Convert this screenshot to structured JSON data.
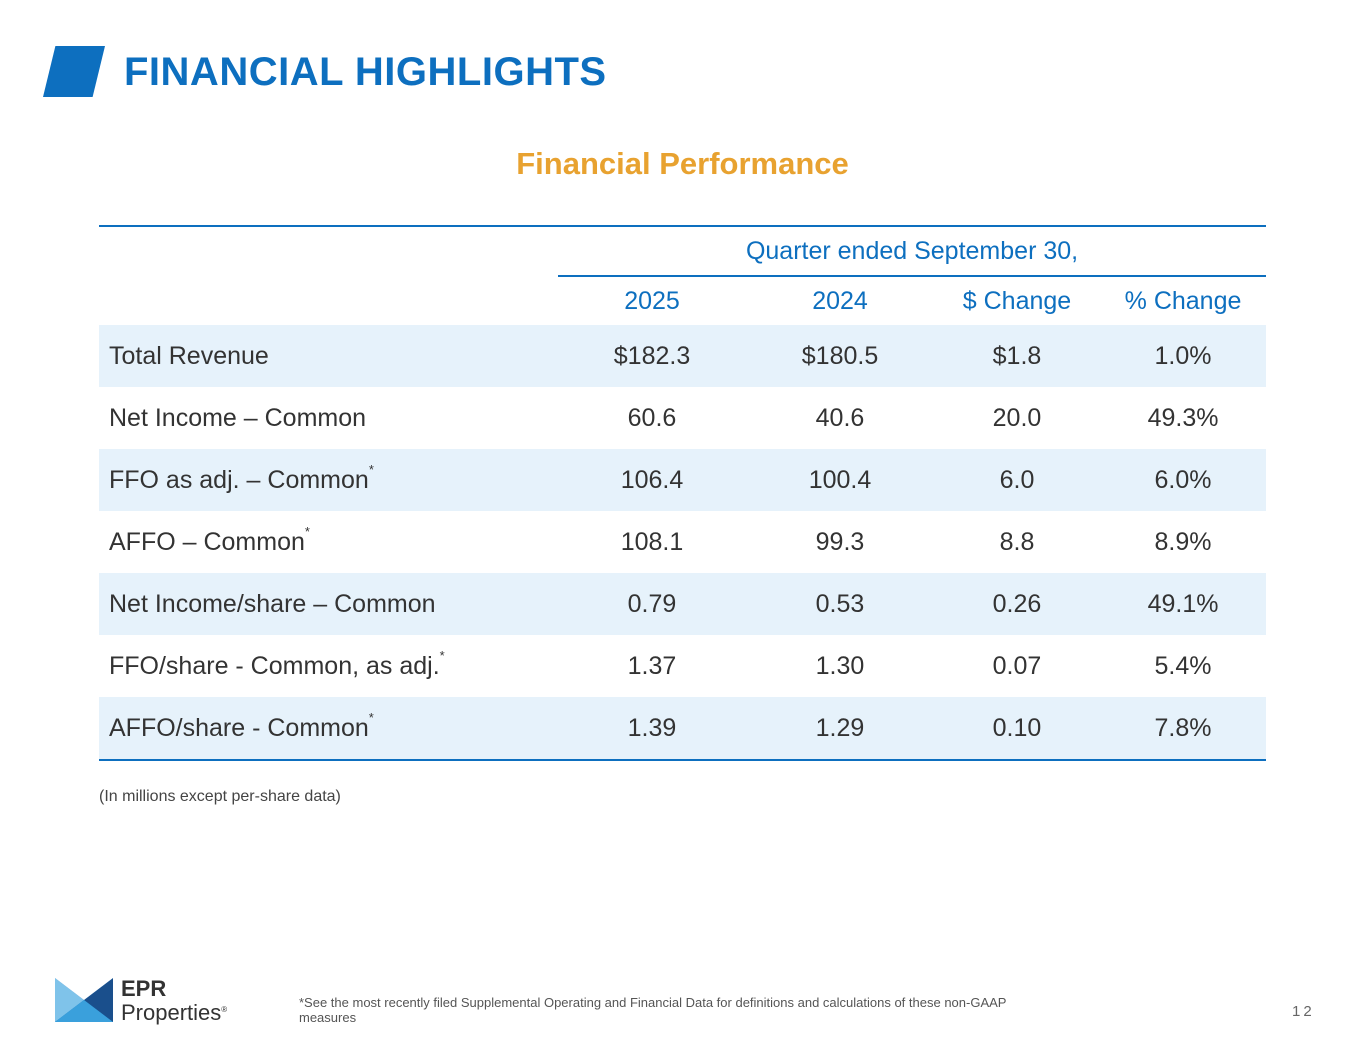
{
  "header": {
    "title": "FINANCIAL HIGHLIGHTS"
  },
  "section": {
    "title": "Financial Performance"
  },
  "table": {
    "group_header": "Quarter ended September 30,",
    "columns": [
      "2025",
      "2024",
      "$ Change",
      "% Change"
    ],
    "rows": [
      {
        "label": "Total Revenue",
        "note": "",
        "v2025": "$182.3",
        "v2024": "$180.5",
        "dchange": "$1.8",
        "pchange": "1.0%"
      },
      {
        "label": "Net Income – Common",
        "note": "",
        "v2025": "60.6",
        "v2024": "40.6",
        "dchange": "20.0",
        "pchange": "49.3%"
      },
      {
        "label": "FFO as adj. – Common",
        "note": "*",
        "v2025": "106.4",
        "v2024": "100.4",
        "dchange": "6.0",
        "pchange": "6.0%"
      },
      {
        "label": "AFFO – Common",
        "note": "*",
        "v2025": "108.1",
        "v2024": "99.3",
        "dchange": "8.8",
        "pchange": "8.9%"
      },
      {
        "label": "Net Income/share – Common",
        "note": "",
        "v2025": "0.79",
        "v2024": "0.53",
        "dchange": "0.26",
        "pchange": "49.1%"
      },
      {
        "label": "FFO/share - Common, as adj.",
        "note": "*",
        "v2025": "1.37",
        "v2024": "1.30",
        "dchange": "0.07",
        "pchange": "5.4%"
      },
      {
        "label": "AFFO/share - Common",
        "note": "*",
        "v2025": "1.39",
        "v2024": "1.29",
        "dchange": "0.10",
        "pchange": "7.8%"
      }
    ]
  },
  "units_note": "(In millions except per-share data)",
  "footer": {
    "logo_line1": "EPR",
    "logo_line2": "Properties",
    "logo_reg": "®",
    "footnote": "*See the most recently filed Supplemental Operating and Financial Data for definitions and calculations of these non-GAAP measures",
    "page_number": "12"
  },
  "colors": {
    "brand_blue": "#0d6fbf",
    "accent_orange": "#e8a230",
    "row_shade": "#e6f2fb"
  },
  "icons": {
    "logo_mark": "epr-logo-icon",
    "title_accent": "title-accent-shape"
  }
}
